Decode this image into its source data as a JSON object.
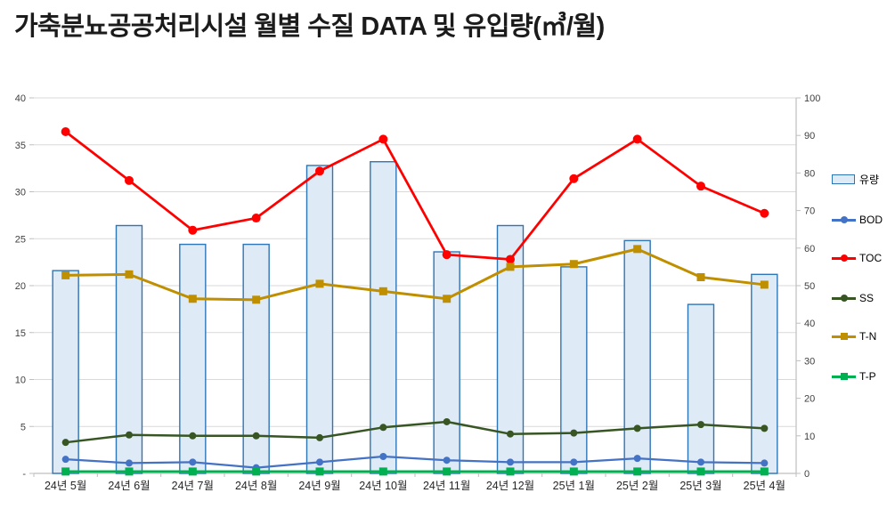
{
  "chart_data": {
    "type": "combo (bar + line, dual axis)",
    "title": "가축분뇨공공처리시설 월별 수질 DATA 및 유입량(㎥/월)",
    "categories": [
      "24년 5월",
      "24년 6월",
      "24년 7월",
      "24년 8월",
      "24년 9월",
      "24년 10월",
      "24년 11월",
      "24년 12월",
      "25년 1월",
      "25년 2월",
      "25년 3월",
      "25년 4월"
    ],
    "series": [
      {
        "name": "유량",
        "type": "bar",
        "axis": "right",
        "fill": "#DEEAF6",
        "stroke": "#2E75B6",
        "values": [
          54,
          66,
          61,
          61,
          82,
          83,
          59,
          66,
          55,
          62,
          45,
          53
        ]
      },
      {
        "name": "BOD",
        "type": "line",
        "axis": "left",
        "color": "#4472C4",
        "marker": "circle",
        "values": [
          1.5,
          1.1,
          1.2,
          0.6,
          1.2,
          1.8,
          1.4,
          1.2,
          1.2,
          1.6,
          1.2,
          1.1
        ]
      },
      {
        "name": "TOC",
        "type": "line",
        "axis": "left",
        "color": "#FF0000",
        "marker": "circle",
        "values": [
          36.4,
          31.2,
          25.9,
          27.2,
          32.2,
          35.6,
          23.3,
          22.8,
          31.4,
          35.6,
          30.6,
          27.7
        ]
      },
      {
        "name": "SS",
        "type": "line",
        "axis": "left",
        "color": "#375623",
        "marker": "circle",
        "values": [
          3.3,
          4.1,
          4.0,
          4.0,
          3.8,
          4.9,
          5.5,
          4.2,
          4.3,
          4.8,
          5.2,
          4.8
        ]
      },
      {
        "name": "T-N",
        "type": "line",
        "axis": "left",
        "color": "#BF8F00",
        "marker": "square",
        "values": [
          21.1,
          21.2,
          18.6,
          18.5,
          20.2,
          19.4,
          18.6,
          22.0,
          22.3,
          23.9,
          20.9,
          20.1
        ]
      },
      {
        "name": "T-P",
        "type": "line",
        "axis": "left",
        "color": "#00B050",
        "marker": "square",
        "values": [
          0.2,
          0.2,
          0.2,
          0.2,
          0.2,
          0.2,
          0.2,
          0.2,
          0.2,
          0.2,
          0.2,
          0.2
        ]
      }
    ],
    "left_axis": {
      "min": 0,
      "max": 40,
      "step": 5,
      "tick_labels": [
        "-",
        "5",
        "10",
        "15",
        "20",
        "25",
        "30",
        "35",
        "40"
      ]
    },
    "right_axis": {
      "min": 0,
      "max": 100,
      "step": 10,
      "tick_labels": [
        "0",
        "10",
        "20",
        "30",
        "40",
        "50",
        "60",
        "70",
        "80",
        "90",
        "100"
      ]
    },
    "legend_position": "right",
    "grid": "horizontal only",
    "colors": {
      "gridline": "#D9D9D9",
      "axis_line": "#BFBFBF",
      "axis_text": "#404040",
      "month_text": "#262626"
    }
  }
}
